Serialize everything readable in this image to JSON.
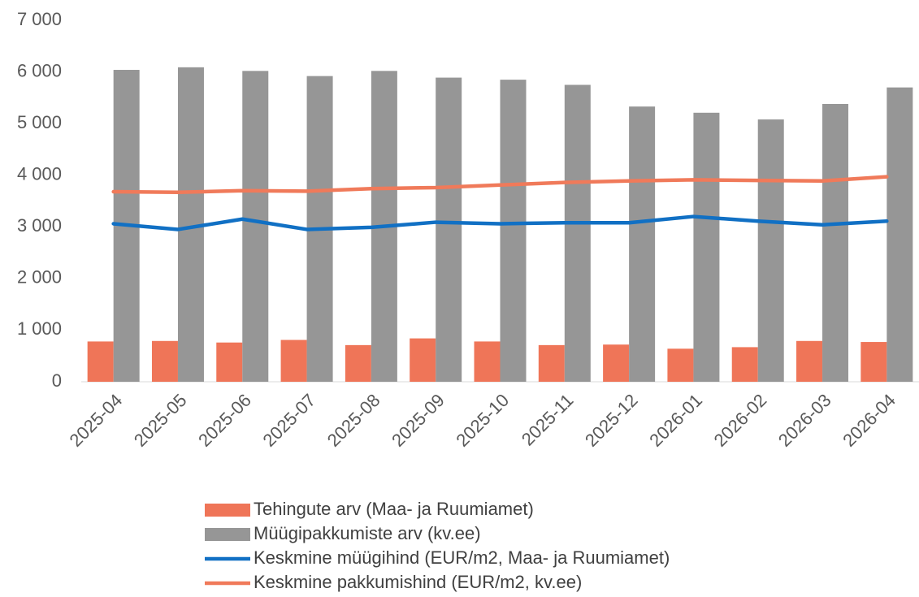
{
  "chart_data": {
    "type": "bar",
    "categories": [
      "2025-04",
      "2025-05",
      "2025-06",
      "2025-07",
      "2025-08",
      "2025-09",
      "2025-10",
      "2025-11",
      "2025-12",
      "2026-01",
      "2026-02",
      "2026-03",
      "2026-04"
    ],
    "series": [
      {
        "name": "Tehingute arv (Maa- ja Ruumiamet)",
        "type": "bar",
        "color": "#ef7558",
        "values": [
          780,
          790,
          760,
          810,
          710,
          840,
          780,
          710,
          720,
          640,
          670,
          790,
          770
        ]
      },
      {
        "name": "Müügipakkumiste arv (kv.ee)",
        "type": "bar",
        "color": "#969696",
        "values": [
          6040,
          6090,
          6020,
          5920,
          6020,
          5890,
          5850,
          5750,
          5330,
          5210,
          5080,
          5380,
          5700
        ]
      },
      {
        "name": "Keskmine müügihind (EUR/m2, Maa- ja Ruumiamet)",
        "type": "line",
        "color": "#1170c4",
        "values": [
          3060,
          2950,
          3150,
          2950,
          2990,
          3090,
          3060,
          3080,
          3080,
          3200,
          3110,
          3040,
          3110
        ]
      },
      {
        "name": "Keskmine pakkumishind (EUR/m2, kv.ee)",
        "type": "line",
        "color": "#f07a5a",
        "values": [
          3680,
          3670,
          3700,
          3690,
          3740,
          3760,
          3810,
          3860,
          3890,
          3910,
          3900,
          3890,
          3970
        ]
      }
    ],
    "ylim": [
      0,
      7000
    ],
    "yticks": [
      0,
      {
        "value": 1000,
        "label": "1 000"
      },
      {
        "value": 2000,
        "label": "2 000"
      },
      {
        "value": 3000,
        "label": "3 000"
      },
      {
        "value": 4000,
        "label": "4 000"
      },
      {
        "value": 5000,
        "label": "5 000"
      },
      {
        "value": 6000,
        "label": "6 000"
      },
      {
        "value": 7000,
        "label": "7 000"
      }
    ],
    "grid": false,
    "legend": "bottom"
  }
}
